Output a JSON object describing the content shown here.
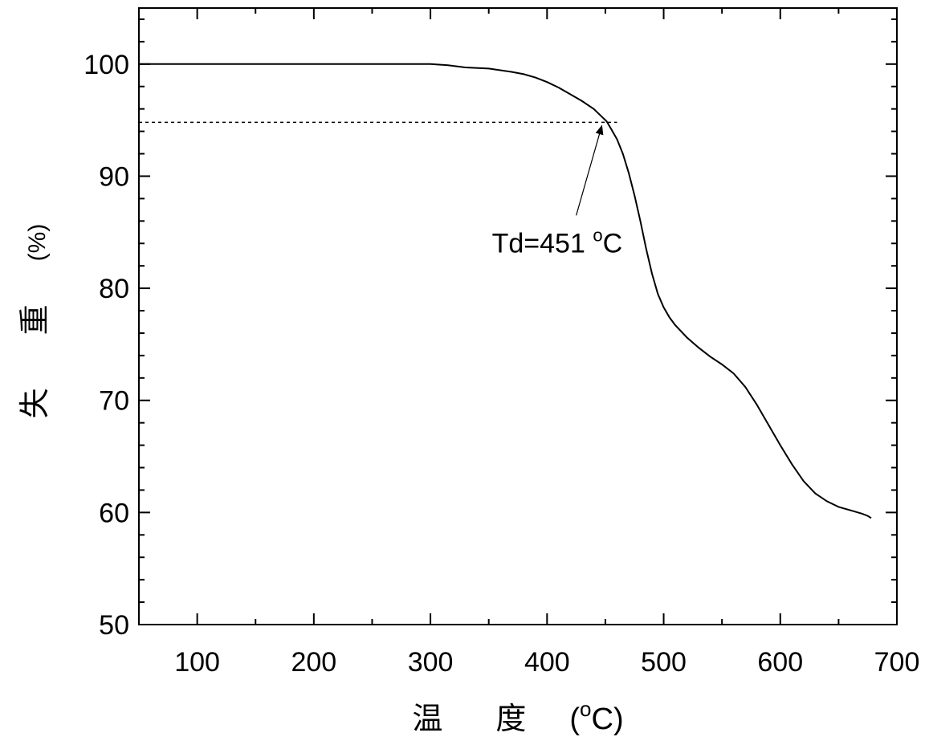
{
  "chart_data": {
    "type": "line",
    "xlabel": "温 度 (°C)",
    "xlabel_parts": {
      "text": "温　度",
      "unit_open": "(",
      "unit_sup": "o",
      "unit_letter": "C",
      "unit_close": ")"
    },
    "ylabel": "失 重 (%)",
    "ylabel_parts": {
      "text": "失　重",
      "unit": "(%)"
    },
    "xlim": [
      50,
      700
    ],
    "ylim": [
      50,
      105
    ],
    "xticks": [
      100,
      200,
      300,
      400,
      500,
      600,
      700
    ],
    "yticks": [
      50,
      60,
      70,
      80,
      90,
      100
    ],
    "grid": false,
    "legend": "none",
    "series": [
      {
        "x": [
          50,
          100,
          200,
          300,
          315,
          330,
          350,
          370,
          380,
          390,
          400,
          410,
          420,
          430,
          440,
          445,
          451,
          455,
          460,
          465,
          470,
          475,
          480,
          485,
          490,
          495,
          500,
          505,
          510,
          520,
          530,
          540,
          550,
          560,
          570,
          580,
          590,
          600,
          610,
          620,
          630,
          640,
          650,
          660,
          670,
          675,
          678
        ],
        "y": [
          100,
          100,
          100,
          100,
          99.9,
          99.7,
          99.6,
          99.3,
          99.1,
          98.8,
          98.4,
          97.9,
          97.3,
          96.7,
          96.0,
          95.5,
          94.9,
          94.2,
          93.3,
          92.0,
          90.3,
          88.3,
          86.0,
          83.5,
          81.3,
          79.5,
          78.3,
          77.4,
          76.7,
          75.6,
          74.7,
          73.9,
          73.2,
          72.4,
          71.2,
          69.6,
          67.8,
          66.0,
          64.3,
          62.8,
          61.7,
          61.0,
          60.5,
          60.2,
          59.9,
          59.7,
          59.5
        ]
      }
    ],
    "reference_line": {
      "y": 94.8,
      "x_from": 50,
      "x_to": 460,
      "style": "dashed"
    },
    "annotation": {
      "label_prefix": "Td=451 ",
      "label_sup": "o",
      "label_suffix": "C",
      "point": [
        447,
        94.8
      ],
      "text_at": [
        425,
        86.5
      ]
    }
  }
}
